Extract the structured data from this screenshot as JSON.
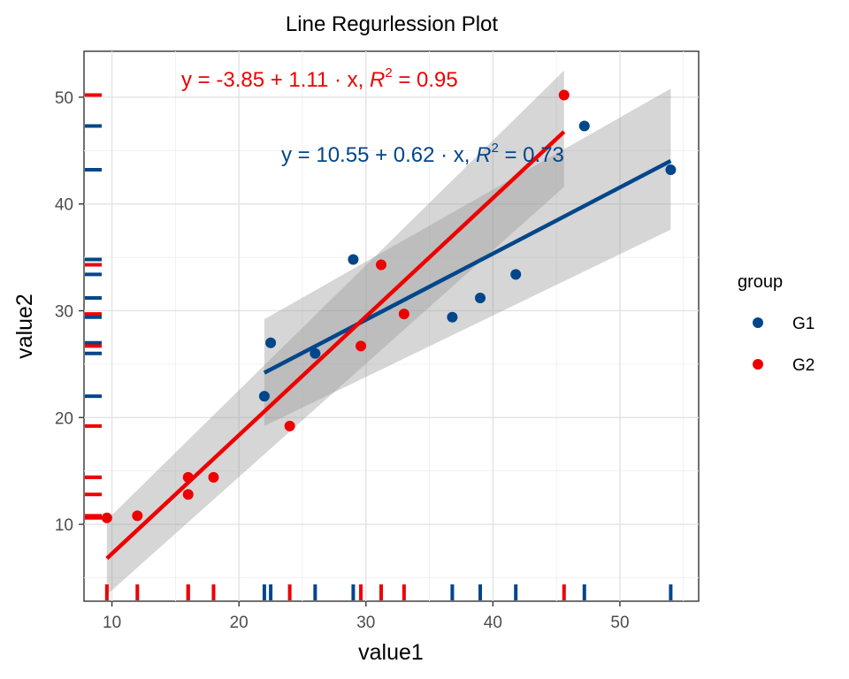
{
  "chart_data": {
    "type": "scatter",
    "title": "Line Regurlession Plot",
    "xlabel": "value1",
    "ylabel": "value2",
    "xlim": [
      7.8,
      56.2
    ],
    "ylim": [
      2.8,
      54.3
    ],
    "x_ticks": [
      10,
      20,
      30,
      40,
      50
    ],
    "y_ticks": [
      10,
      20,
      30,
      40,
      50
    ],
    "grid": true,
    "legend": {
      "title": "group",
      "position": "right"
    },
    "series": [
      {
        "name": "G1",
        "color": "#00468B",
        "points": [
          {
            "x": 22.0,
            "y": 22.0
          },
          {
            "x": 22.5,
            "y": 27.0
          },
          {
            "x": 26.0,
            "y": 26.0
          },
          {
            "x": 29.0,
            "y": 34.8
          },
          {
            "x": 36.8,
            "y": 29.4
          },
          {
            "x": 39.0,
            "y": 31.2
          },
          {
            "x": 41.8,
            "y": 33.4
          },
          {
            "x": 47.2,
            "y": 47.3
          },
          {
            "x": 54.0,
            "y": 43.2
          }
        ],
        "fit": {
          "intercept": 10.55,
          "slope": 0.62,
          "x_range": [
            22.0,
            54.0
          ]
        },
        "band": {
          "x": [
            22.0,
            54.0
          ],
          "lower": [
            19.2,
            37.6
          ],
          "upper": [
            29.2,
            50.8
          ]
        },
        "equation": {
          "lhs": "y = 10.55 + 0.62 · x,",
          "r2_prefix": "R",
          "r2_sup": "2",
          "r2_rest": " = 0.73"
        }
      },
      {
        "name": "G2",
        "color": "#ED0000",
        "points": [
          {
            "x": 9.6,
            "y": 10.6
          },
          {
            "x": 12.0,
            "y": 10.8
          },
          {
            "x": 16.0,
            "y": 14.4
          },
          {
            "x": 16.0,
            "y": 12.8
          },
          {
            "x": 18.0,
            "y": 14.4
          },
          {
            "x": 24.0,
            "y": 19.2
          },
          {
            "x": 29.6,
            "y": 26.7
          },
          {
            "x": 31.2,
            "y": 34.3
          },
          {
            "x": 33.0,
            "y": 29.7
          },
          {
            "x": 45.6,
            "y": 50.2
          }
        ],
        "fit": {
          "intercept": -3.85,
          "slope": 1.11,
          "x_range": [
            9.6,
            45.6
          ]
        },
        "band": {
          "x": [
            9.6,
            45.6
          ],
          "lower": [
            3.4,
            41.6
          ],
          "upper": [
            10.4,
            52.5
          ]
        },
        "equation": {
          "lhs": "y = -3.85 + 1.11 · x,",
          "r2_prefix": "R",
          "r2_sup": "2",
          "r2_rest": " = 0.95"
        }
      }
    ]
  }
}
